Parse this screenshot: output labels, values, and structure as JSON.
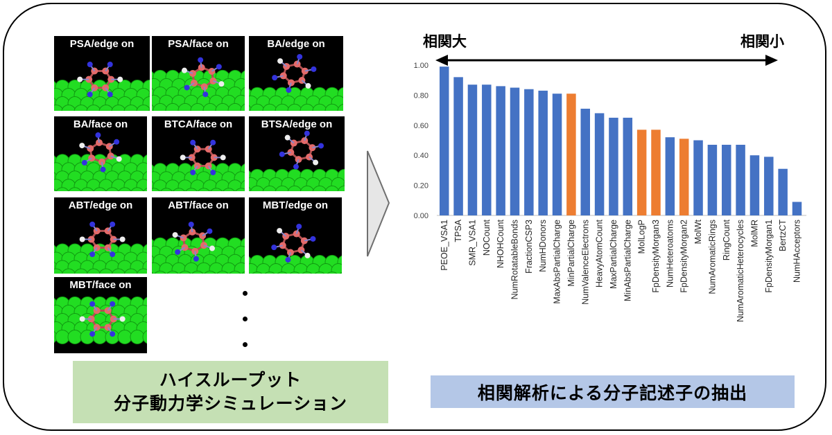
{
  "tiles": [
    {
      "label": "PSA/edge on"
    },
    {
      "label": "PSA/face on"
    },
    {
      "label": "BA/edge on"
    },
    {
      "label": "BA/face on"
    },
    {
      "label": "BTCA/face on"
    },
    {
      "label": "BTSA/edge on"
    },
    {
      "label": "ABT/edge on"
    },
    {
      "label": "ABT/face on"
    },
    {
      "label": "MBT/edge on"
    },
    {
      "label": "MBT/face on"
    }
  ],
  "left_caption": {
    "line1": "ハイスループット",
    "line2": "分子動力学シミュレーション"
  },
  "right_caption": "相関解析による分子記述子の抽出",
  "scale": {
    "high_label": "相関大",
    "low_label": "相関小"
  },
  "colors": {
    "blue": "#4472c4",
    "orange": "#ed7d31",
    "molecule_green": "#22dd22",
    "atom_red": "#e46a6a",
    "atom_blue": "#3333dd"
  },
  "chart_data": {
    "type": "bar",
    "categories": [
      "PEOE_VSA1",
      "TPSA",
      "SMR_VSA1",
      "NOCount",
      "NHOHCount",
      "NumRotatableBonds",
      "FractionCSP3",
      "NumHDonors",
      "MaxAbsPartialCharge",
      "MinPartialCharge",
      "NumValenceElectrons",
      "HeavyAtomCount",
      "MaxPartialCharge",
      "MinAbsPartialCharge",
      "MolLogP",
      "FpDensityMorgan3",
      "NumHeteroatoms",
      "FpDensityMorgan2",
      "MolWt",
      "NumAromaticRings",
      "RingCount",
      "NumAromaticHeterocycles",
      "MolMR",
      "FpDensityMorgan1",
      "BertzCT",
      "NumHAcceptors"
    ],
    "values": [
      0.99,
      0.92,
      0.87,
      0.87,
      0.86,
      0.85,
      0.84,
      0.83,
      0.81,
      0.81,
      0.71,
      0.68,
      0.65,
      0.65,
      0.57,
      0.57,
      0.52,
      0.51,
      0.5,
      0.47,
      0.47,
      0.47,
      0.4,
      0.39,
      0.31,
      0.09
    ],
    "highlight": [
      false,
      false,
      false,
      false,
      false,
      false,
      false,
      false,
      false,
      true,
      false,
      false,
      false,
      false,
      true,
      true,
      false,
      true,
      false,
      false,
      false,
      false,
      false,
      false,
      false,
      false
    ],
    "yticks": [
      "0.00",
      "0.20",
      "0.40",
      "0.60",
      "0.80",
      "1.00"
    ],
    "ylim": [
      0,
      1.0
    ],
    "grid": false
  }
}
